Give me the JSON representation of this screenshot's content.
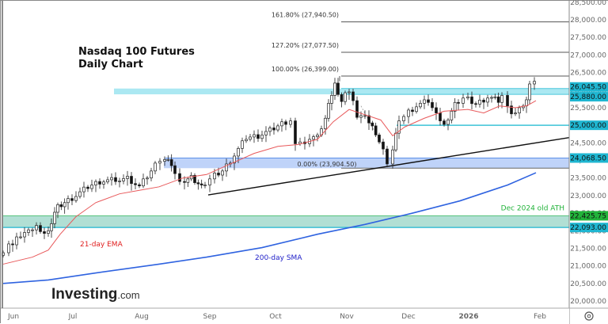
{
  "chart_data": {
    "type": "candlestick",
    "title": "Nasdaq 100 Futures",
    "subtitle": "Daily Chart",
    "xlabel": "",
    "ylabel": "",
    "ylim": [
      19900,
      28600
    ],
    "x_ticks": [
      "Jun",
      "Jul",
      "Aug",
      "Sep",
      "Oct",
      "Nov",
      "Dec",
      "2026",
      "Feb"
    ],
    "y_ticks": [
      20000,
      20500,
      21000,
      21500,
      22000,
      22500,
      23000,
      23500,
      24000,
      24500,
      25000,
      25500,
      26000,
      26500,
      27000,
      27500,
      28000,
      28500
    ],
    "y_tick_labels": [
      "20,000.00",
      "20,500.00",
      "21,000.00",
      "21,500.00",
      "22,000.00",
      "22,500.00",
      "23,000.00",
      "23,500.00",
      "24,000.00",
      "24,500.00",
      "25,000.00",
      "25,500.00",
      "26,000.00",
      "26,500.00",
      "27,000.00",
      "27,500.00",
      "28,000.00",
      "28,500.00"
    ],
    "price_tags": [
      {
        "value": 26045.5,
        "label": "26,045.50",
        "color": "#1fb6d1"
      },
      {
        "value": 25880.0,
        "label": "25,880.00",
        "color": "#1fb6d1"
      },
      {
        "value": 25000.0,
        "label": "25,000.00",
        "color": "#1fb6d1"
      },
      {
        "value": 24068.5,
        "label": "24,068.50",
        "color": "#1fb6d1"
      },
      {
        "value": 22425.75,
        "label": "22,425.75",
        "color": "#22b33a"
      },
      {
        "value": 22093.0,
        "label": "22,093.00",
        "color": "#1fb6d1"
      }
    ],
    "fibonacci": [
      {
        "level": "161.80%",
        "price": 27940.5,
        "label": "161.80% (27,940.50)"
      },
      {
        "level": "127.20%",
        "price": 27077.5,
        "label": "127.20% (27,077.50)"
      },
      {
        "level": "100.00%",
        "price": 26399.0,
        "label": "100.00% (26,399.00)"
      },
      {
        "level": "0.00%",
        "price": 23904.5,
        "label": "0.00% (23,904.50)"
      }
    ],
    "zones": [
      {
        "name": "resistance-zone",
        "from": 25880,
        "to": 26045.5,
        "color": "#8fe0ee"
      },
      {
        "name": "support-zone-24k",
        "from": 23780,
        "to": 24068.5,
        "color": "#aac4f7"
      },
      {
        "name": "dec-2024-ath-zone",
        "from": 22093,
        "to": 22425.75,
        "color": "#a8dccf"
      }
    ],
    "horizontal_lines": [
      {
        "name": "25000-support",
        "price": 25000,
        "color": "#3cc3d6"
      }
    ],
    "trendline": {
      "from": {
        "x": "Sep",
        "price": 23020
      },
      "to": {
        "x": "Feb+",
        "price": 24700
      }
    },
    "indicators": [
      {
        "name": "21-day EMA",
        "color": "#e23b3b"
      },
      {
        "name": "200-day SMA",
        "color": "#2a5bdb"
      }
    ],
    "annotations": [
      "Dec 2024 old ATH",
      "21-day EMA",
      "200-day SMA"
    ],
    "last_price_approx": 26200,
    "high_approx": 26399,
    "low_approx": 20950
  },
  "header": {
    "title": "Nasdaq 100 Futures",
    "subtitle": "Daily Chart"
  },
  "labels": {
    "ath": "Dec 2024 old ATH",
    "ema": "21-day EMA",
    "sma": "200-day SMA",
    "logo_main": "Investing",
    "logo_suffix": ".com"
  },
  "colors": {
    "ema": "#e8595b",
    "sma": "#2f63e0",
    "ath_text": "#22b33a",
    "sma_text": "#2020c8",
    "ema_text": "#e02020"
  },
  "settings_icon": "settings-circle-icon"
}
